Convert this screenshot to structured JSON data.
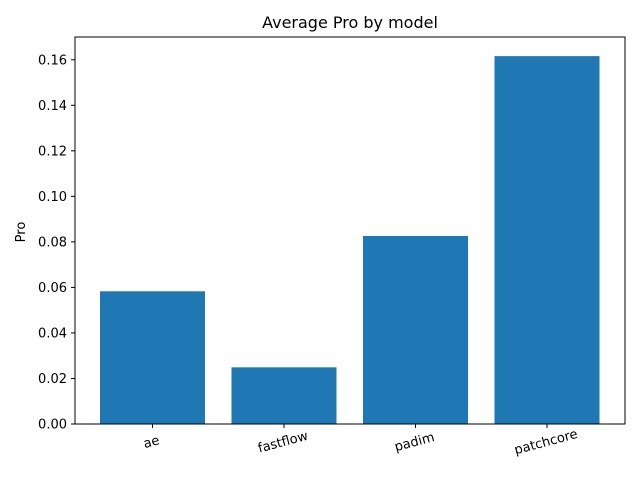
{
  "chart_data": {
    "type": "bar",
    "title": "Average Pro by model",
    "xlabel": "",
    "ylabel": "Pro",
    "categories": [
      "ae",
      "fastflow",
      "padim",
      "patchcore"
    ],
    "values": [
      0.0583,
      0.0249,
      0.0826,
      0.1616
    ],
    "ylim": [
      0,
      0.17
    ],
    "yticks": [
      "0.00",
      "0.02",
      "0.04",
      "0.06",
      "0.08",
      "0.10",
      "0.12",
      "0.14",
      "0.16"
    ],
    "bar_color": "#1f77b4",
    "grid": false,
    "legend": "none"
  }
}
